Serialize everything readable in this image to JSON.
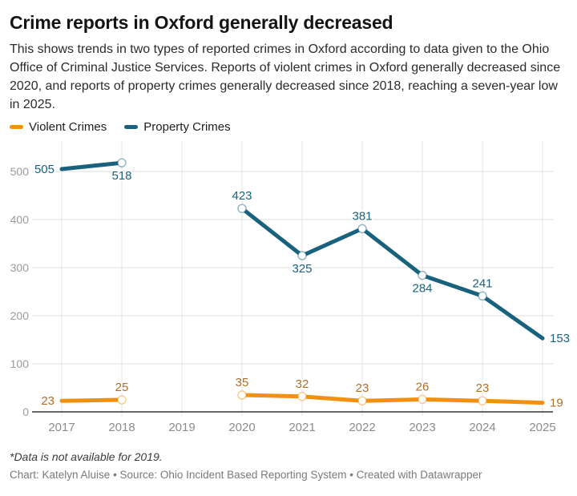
{
  "header": {
    "title": "Crime reports in Oxford generally decreased",
    "description": "This shows trends in two types of reported crimes in Oxford according to data given to the Ohio Office of Criminal Justice Services. Reports of violent crimes in Oxford generally decreased since 2020, and reports of property crimes generally decreased since 2018, reaching a seven-year low in 2025."
  },
  "legend": {
    "items": [
      {
        "label": "Violent Crimes",
        "color": "#F29111"
      },
      {
        "label": "Property Crimes",
        "color": "#19627E"
      }
    ]
  },
  "chart_data": {
    "type": "line",
    "title": "Crime reports in Oxford generally decreased",
    "x": [
      "2017",
      "2018",
      "2019",
      "2020",
      "2021",
      "2022",
      "2023",
      "2024",
      "2025"
    ],
    "series": [
      {
        "name": "Violent Crimes",
        "color": "#F29111",
        "label_color": "#B06E28",
        "values": [
          23,
          25,
          null,
          35,
          32,
          23,
          26,
          23,
          19
        ],
        "label_placements": [
          "left",
          "above",
          null,
          "above",
          "above",
          "above",
          "above",
          "above",
          "right"
        ]
      },
      {
        "name": "Property Crimes",
        "color": "#19627E",
        "label_color": "#19627E",
        "values": [
          505,
          518,
          null,
          423,
          325,
          381,
          284,
          241,
          153
        ],
        "label_placements": [
          "left",
          "below",
          null,
          "above",
          "below",
          "above",
          "below",
          "above",
          "right"
        ]
      }
    ],
    "yticks": [
      0,
      100,
      200,
      300,
      400,
      500
    ],
    "ylim": [
      0,
      550
    ],
    "grid": true,
    "legend_position": "top",
    "missing_data_years": [
      "2019"
    ]
  },
  "footer": {
    "note": "*Data is not available for 2019.",
    "byline": "Chart: Katelyn Aluise • Source: Ohio Incident Based Reporting System • Created with Datawrapper"
  }
}
